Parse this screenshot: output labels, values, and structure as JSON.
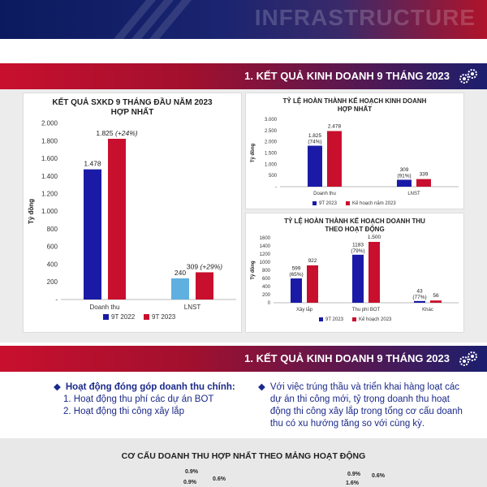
{
  "banner": {
    "watermark": "INFRASTRUCTURE"
  },
  "section1": {
    "title": "1. KẾT QUẢ KINH DOANH 9 THÁNG 2023"
  },
  "section2": {
    "title": "1. KẾT QUẢ KINH DOANH 9 THÁNG 2023"
  },
  "info": {
    "left_heading": "Hoạt động đóng góp doanh thu chính:",
    "left_items": [
      "1. Hoạt động thu phí các dự án BOT",
      "2. Hoạt động thi công xây lắp"
    ],
    "right_text": "Với việc trúng thầu và triển khai hàng loạt các dự án thi công mới, tỷ trọng doanh thu hoạt động thi công xây lắp trong tổng cơ cấu doanh thu có xu hướng tăng so với cùng kỳ."
  },
  "bottom": {
    "title": "CƠ CẤU DOANH THU HỢP NHẤT THEO MẢNG HOẠT ĐỘNG",
    "pcts": [
      "0.9%",
      "0.9%",
      "0.6%",
      "0.9%",
      "0.6%",
      "1.6%"
    ]
  },
  "colors": {
    "navy": "#1a1aa6",
    "red": "#c8102e",
    "light_blue": "#5fb0e0"
  },
  "chart_data": [
    {
      "type": "bar",
      "title": "KẾT QUẢ SXKD 9 THÁNG ĐẦU NĂM 2023 HỢP NHẤT",
      "ylabel": "Tỷ đồng",
      "categories": [
        "Doanh thu",
        "LNST"
      ],
      "ylim": [
        0,
        2000
      ],
      "yticks": [
        "2.000",
        "1.800",
        "1.600",
        "1.400",
        "1.200",
        "1.000",
        "800",
        "600",
        "400",
        "200",
        "-"
      ],
      "series": [
        {
          "name": "9T 2022",
          "values": [
            1478,
            240
          ],
          "labels": [
            "1.478",
            "240"
          ]
        },
        {
          "name": "9T 2023",
          "values": [
            1825,
            309
          ],
          "labels": [
            "1.825 (+24%)",
            "309 (+29%)"
          ]
        }
      ]
    },
    {
      "type": "bar",
      "title": "TỶ LỆ HOÀN THÀNH KẾ HOẠCH KINH DOANH HỢP NHẤT",
      "ylabel": "Tỷ đồng",
      "categories": [
        "Doanh thu",
        "LNST"
      ],
      "ylim": [
        0,
        3000
      ],
      "yticks": [
        "3.000",
        "2.500",
        "2.000",
        "1.500",
        "1.000",
        "500",
        "-"
      ],
      "series": [
        {
          "name": "9T 2023",
          "values": [
            1825,
            309
          ],
          "labels": [
            "1.825 (74%)",
            "309 (91%)"
          ]
        },
        {
          "name": "Kế hoạch năm 2023",
          "values": [
            2478,
            339
          ],
          "labels": [
            "2.478",
            "339"
          ]
        }
      ]
    },
    {
      "type": "bar",
      "title": "TỶ LỆ HOÀN THÀNH KẾ HOẠCH DOANH THU THEO HOẠT ĐỘNG",
      "ylabel": "Tỷ đồng",
      "categories": [
        "Xây lắp",
        "Thu phí BOT",
        "Khác"
      ],
      "ylim": [
        0,
        1600
      ],
      "yticks": [
        "1600",
        "1400",
        "1200",
        "1000",
        "800",
        "600",
        "400",
        "200",
        "0"
      ],
      "series": [
        {
          "name": "9T 2023",
          "values": [
            599,
            1183,
            43
          ],
          "labels": [
            "599 (65%)",
            "1183 (79%)",
            "43 (77%)"
          ]
        },
        {
          "name": "Kế hoạch 2023",
          "values": [
            922,
            1500,
            56
          ],
          "labels": [
            "922",
            "1.500",
            "56"
          ]
        }
      ]
    }
  ]
}
